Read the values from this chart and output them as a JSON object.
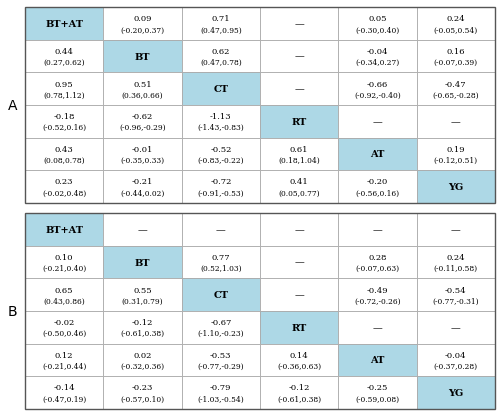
{
  "tableA": {
    "cells": [
      [
        "BT+AT",
        "0.09\n(-0.20,0.37)",
        "0.71\n(0.47,0.95)",
        "—",
        "0.05\n(-0.30,0.40)",
        "0.24\n(-0.05,0.54)"
      ],
      [
        "0.44\n(0.27,0.62)",
        "BT",
        "0.62\n(0.47,0.78)",
        "—",
        "-0.04\n(-0.34,0.27)",
        "0.16\n(-0.07,0.39)"
      ],
      [
        "0.95\n(0.78,1.12)",
        "0.51\n(0.36,0.66)",
        "CT",
        "—",
        "-0.66\n(-0.92,-0.40)",
        "-0.47\n(-0.65,-0.28)"
      ],
      [
        "-0.18\n(-0.52,0.16)",
        "-0.62\n(-0.96,-0.29)",
        "-1.13\n(-1.43,-0.83)",
        "RT",
        "—",
        "—"
      ],
      [
        "0.43\n(0.08,0.78)",
        "-0.01\n(-0.35,0.33)",
        "-0.52\n(-0.83,-0.22)",
        "0.61\n(0.18,1.04)",
        "AT",
        "0.19\n(-0.12,0.51)"
      ],
      [
        "0.23\n(-0.02,0.48)",
        "-0.21\n(-0.44,0.02)",
        "-0.72\n(-0.91,-0.53)",
        "0.41\n(0.05,0.77)",
        "-0.20\n(-0.56,0.16)",
        "YG"
      ]
    ]
  },
  "tableB": {
    "cells": [
      [
        "BT+AT",
        "—",
        "—",
        "—",
        "—",
        "—"
      ],
      [
        "0.10\n(-0.21,0.40)",
        "BT",
        "0.77\n(0.52,1.03)",
        "—",
        "0.28\n(-0.07,0.63)",
        "0.24\n(-0.11,0.58)"
      ],
      [
        "0.65\n(0.43,0.86)",
        "0.55\n(0.31,0.79)",
        "CT",
        "—",
        "-0.49\n(-0.72,-0.26)",
        "-0.54\n(-0.77,-0.31)"
      ],
      [
        "-0.02\n(-0.50,0.46)",
        "-0.12\n(-0.61,0.38)",
        "-0.67\n(-1.10,-0.23)",
        "RT",
        "—",
        "—"
      ],
      [
        "0.12\n(-0.21,0.44)",
        "0.02\n(-0.32,0.36)",
        "-0.53\n(-0.77,-0.29)",
        "0.14\n(-0.36,0.63)",
        "AT",
        "-0.04\n(-0.37,0.28)"
      ],
      [
        "-0.14\n(-0.47,0.19)",
        "-0.23\n(-0.57,0.10)",
        "-0.79\n(-1.03,-0.54)",
        "-0.12\n(-0.61,0.38)",
        "-0.25\n(-0.59,0.08)",
        "YG"
      ]
    ]
  },
  "highlight_color": "#ADD8E6",
  "cell_bg": "#FFFFFF",
  "border_color": "#AAAAAA",
  "text_color": "#000000",
  "label_A": "A",
  "label_B": "B",
  "font_size_main": 6.0,
  "font_size_sub": 5.4,
  "font_size_diag": 7.0,
  "font_size_side": 10
}
